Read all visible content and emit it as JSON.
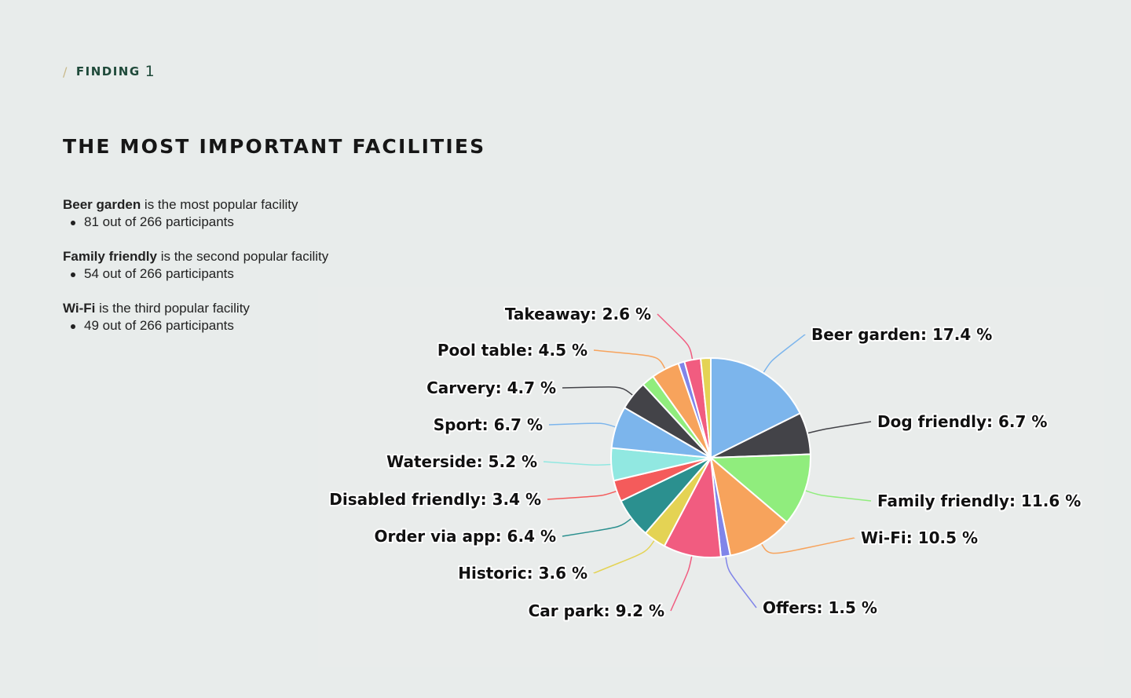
{
  "section": {
    "slash": "/",
    "eyebrow": "FINDING",
    "number": "1"
  },
  "title": "THE MOST IMPORTANT FACILITIES",
  "findings": [
    {
      "bold": "Beer garden",
      "text": " is the most popular facility",
      "detail": "81 out of 266 participants"
    },
    {
      "bold": "Family friendly",
      "text": " is the second popular facility",
      "detail": "54 out of 266 participants"
    },
    {
      "bold": "Wi-Fi",
      "text": " is the third popular facility",
      "detail": "49 out of 266 participants"
    }
  ],
  "chart_data": {
    "type": "pie",
    "title": "",
    "label_format": "{name}: {value} %",
    "series": [
      {
        "name": "",
        "slices": [
          {
            "name": "Beer garden",
            "value": 17.4,
            "color": "#7cb5ec"
          },
          {
            "name": "Dog friendly",
            "value": 6.7,
            "color": "#434348"
          },
          {
            "name": "Family friendly",
            "value": 11.6,
            "color": "#90ed7d"
          },
          {
            "name": "Wi-Fi",
            "value": 10.5,
            "color": "#f7a35c"
          },
          {
            "name": "Offers",
            "value": 1.5,
            "color": "#8085e9"
          },
          {
            "name": "Car park",
            "value": 9.2,
            "color": "#f15c80"
          },
          {
            "name": "Historic",
            "value": 3.6,
            "color": "#e4d354"
          },
          {
            "name": "Order via app",
            "value": 6.4,
            "color": "#2b908f"
          },
          {
            "name": "Disabled friendly",
            "value": 3.4,
            "color": "#f45b5b"
          },
          {
            "name": "Waterside",
            "value": 5.2,
            "color": "#91e8e1"
          },
          {
            "name": "Sport",
            "value": 6.7,
            "color": "#7cb5ec"
          },
          {
            "name": "Carvery",
            "value": 4.7,
            "color": "#434348"
          },
          {
            "name": "Pool table",
            "value": 4.5,
            "color": "#f7a35c"
          },
          {
            "name": "Takeaway",
            "value": 2.6,
            "color": "#f15c80"
          }
        ]
      }
    ],
    "unlabeled_slices": [
      {
        "value": 2.0,
        "color": "#90ed7d"
      },
      {
        "value": 1.0,
        "color": "#8085e9"
      },
      {
        "value": 1.6,
        "color": "#e4d354"
      }
    ]
  }
}
